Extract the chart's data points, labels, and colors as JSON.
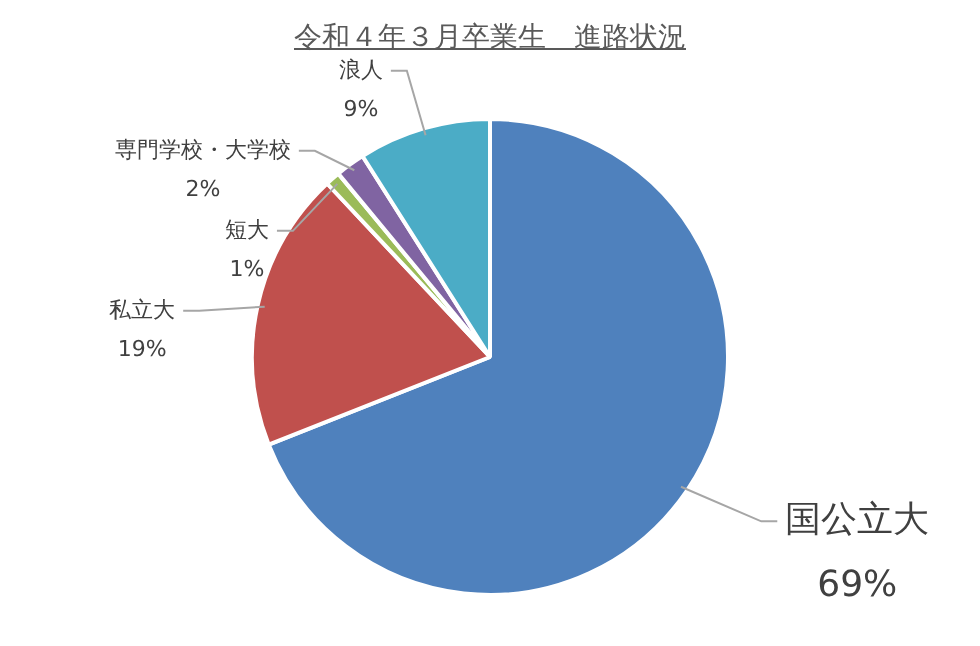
{
  "chart_data": {
    "type": "pie",
    "title": "令和４年３月卒業生　進路状況",
    "categories": [
      "国公立大",
      "私立大",
      "短大",
      "専門学校・大学校",
      "浪人"
    ],
    "values": [
      69,
      19,
      1,
      2,
      9
    ],
    "value_labels": [
      "69%",
      "19%",
      "1%",
      "2%",
      "9%"
    ],
    "colors": [
      "#4f81bd",
      "#c0504d",
      "#9bbb59",
      "#8064a2",
      "#4bacc6"
    ],
    "legend": false
  }
}
